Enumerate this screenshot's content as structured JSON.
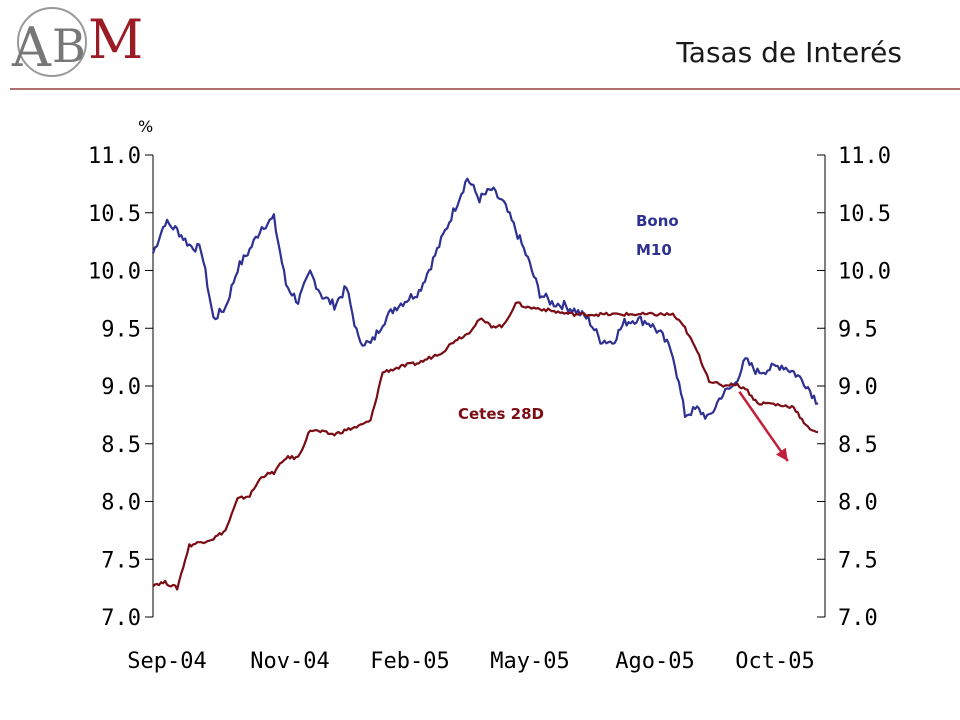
{
  "header": {
    "title": "Tasas de Interés",
    "logo_text": "ABM"
  },
  "colors": {
    "bono": "#2e3192",
    "cetes": "#7a0c14",
    "arrow": "#c0203a",
    "rule": "#b07070"
  },
  "chart_data": {
    "type": "line",
    "title": "",
    "ylabel": "%",
    "ylim": [
      7.0,
      11.0
    ],
    "ytick_labels": [
      "11.0",
      "10.5",
      "10.0",
      "9.5",
      "9.0",
      "8.5",
      "8.0",
      "7.5",
      "7.0"
    ],
    "yticks": [
      11.0,
      10.5,
      10.0,
      9.5,
      9.0,
      8.5,
      8.0,
      7.5,
      7.0
    ],
    "xtick_labels": [
      "Sep-04",
      "Nov-04",
      "Feb-05",
      "May-05",
      "Ago-05",
      "Oct-05"
    ],
    "x_range": [
      0,
      60
    ],
    "xticks": [
      0,
      10,
      20,
      30,
      40,
      50
    ],
    "series": [
      {
        "name": "Bono M10",
        "label_lines": [
          "Bono",
          "M10"
        ],
        "x": [
          0,
          1,
          2,
          3,
          4,
          5,
          6,
          7,
          8,
          9,
          10,
          11,
          12,
          13,
          14,
          15,
          16,
          17,
          18,
          19,
          20,
          21,
          22,
          23,
          24,
          25,
          26,
          27,
          28,
          29,
          30,
          31,
          32,
          33,
          34,
          35,
          36,
          37,
          38,
          39,
          40,
          41,
          42,
          43,
          44,
          45,
          46,
          47,
          48,
          49,
          50,
          51,
          52,
          53,
          54,
          55
        ],
        "values": [
          10.15,
          10.42,
          10.35,
          10.22,
          10.18,
          9.58,
          9.68,
          10.02,
          10.18,
          10.38,
          10.45,
          9.88,
          9.73,
          9.98,
          9.78,
          9.7,
          9.85,
          9.4,
          9.36,
          9.55,
          9.68,
          9.75,
          9.82,
          10.05,
          10.3,
          10.55,
          10.8,
          10.62,
          10.7,
          10.58,
          10.35,
          10.1,
          9.8,
          9.72,
          9.7,
          9.65,
          9.58,
          9.4,
          9.38,
          9.55,
          9.58,
          9.55,
          9.45,
          9.28,
          8.75,
          8.8,
          8.72,
          8.92,
          9.0,
          9.22,
          9.12,
          9.15,
          9.18,
          9.12,
          9.02,
          8.85
        ]
      },
      {
        "name": "Cetes 28D",
        "x": [
          0,
          1,
          2,
          3,
          4,
          5,
          6,
          7,
          8,
          9,
          10,
          11,
          12,
          13,
          14,
          15,
          16,
          17,
          18,
          19,
          20,
          21,
          22,
          23,
          24,
          25,
          26,
          27,
          28,
          29,
          30,
          31,
          32,
          33,
          34,
          35,
          36,
          37,
          38,
          39,
          40,
          41,
          42,
          43,
          44,
          45,
          46,
          47,
          48,
          49,
          50,
          51,
          52,
          53,
          54,
          55
        ],
        "values": [
          7.28,
          7.3,
          7.25,
          7.62,
          7.65,
          7.68,
          7.75,
          8.02,
          8.05,
          8.22,
          8.25,
          8.38,
          8.38,
          8.62,
          8.6,
          8.58,
          8.62,
          8.65,
          8.7,
          9.12,
          9.15,
          9.18,
          9.2,
          9.25,
          9.3,
          9.4,
          9.45,
          9.58,
          9.52,
          9.52,
          9.72,
          9.68,
          9.67,
          9.65,
          9.63,
          9.62,
          9.62,
          9.62,
          9.62,
          9.62,
          9.62,
          9.62,
          9.62,
          9.62,
          9.5,
          9.3,
          9.05,
          9.0,
          9.02,
          8.98,
          8.85,
          8.85,
          8.83,
          8.82,
          8.65,
          8.6
        ]
      }
    ],
    "annotations": [
      {
        "type": "arrow",
        "from": [
          48.5,
          8.95
        ],
        "to": [
          52.5,
          8.35
        ]
      }
    ],
    "grid": false,
    "legend": "inline labels"
  }
}
